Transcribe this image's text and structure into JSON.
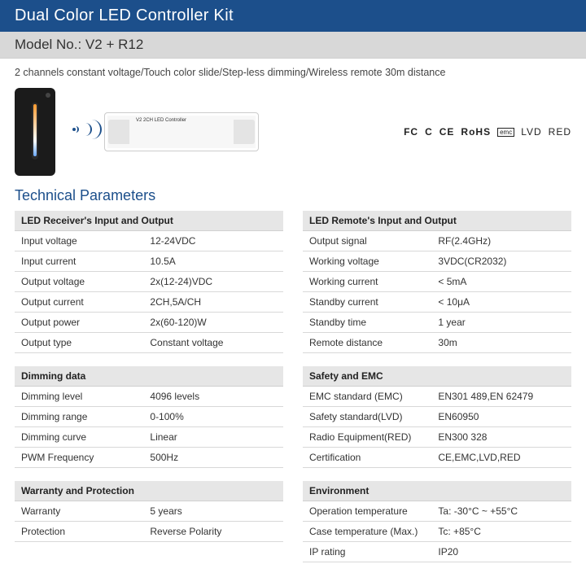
{
  "banner_title": "Dual Color LED Controller Kit",
  "model_label": "Model No.: V2 + R12",
  "subtitle": "2 channels constant voltage/Touch color slide/Step-less dimming/Wireless remote 30m distance",
  "controller_label": "V2\n2CH LED Controller",
  "cert_badges": {
    "fc": "FC",
    "c": "C",
    "ce": "CE",
    "rohs": "RoHS",
    "emc": "emc",
    "lvd": "LVD",
    "red": "RED"
  },
  "technical_parameters_title": "Technical Parameters",
  "colors": {
    "banner_bg": "#1c4f8b",
    "banner_fg": "#ffffff",
    "model_bg": "#d8d8d8",
    "th_bg": "#e6e6e6",
    "accent": "#1c4f8b",
    "row_border": "#d8d8d8"
  },
  "tables_left": [
    {
      "header": "LED Receiver's Input and Output",
      "rows": [
        [
          "Input voltage",
          "12-24VDC"
        ],
        [
          "Input current",
          "10.5A"
        ],
        [
          "Output voltage",
          "2x(12-24)VDC"
        ],
        [
          "Output current",
          "2CH,5A/CH"
        ],
        [
          "Output power",
          "2x(60-120)W"
        ],
        [
          "Output type",
          "Constant voltage"
        ]
      ]
    },
    {
      "header": "Dimming data",
      "rows": [
        [
          "Dimming level",
          "4096 levels"
        ],
        [
          "Dimming range",
          "0-100%"
        ],
        [
          "Dimming curve",
          "Linear"
        ],
        [
          "PWM Frequency",
          "500Hz"
        ]
      ]
    },
    {
      "header": "Warranty and Protection",
      "rows": [
        [
          "Warranty",
          "5 years"
        ],
        [
          "Protection",
          "Reverse Polarity"
        ]
      ]
    }
  ],
  "tables_right": [
    {
      "header": "LED Remote's Input and Output",
      "rows": [
        [
          "Output signal",
          "RF(2.4GHz)"
        ],
        [
          "Working voltage",
          "3VDC(CR2032)"
        ],
        [
          "Working current",
          "< 5mA"
        ],
        [
          "Standby current",
          "< 10μA"
        ],
        [
          "Standby time",
          "1 year"
        ],
        [
          "Remote distance",
          "30m"
        ]
      ]
    },
    {
      "header": "Safety and EMC",
      "rows": [
        [
          "EMC standard (EMC)",
          "EN301 489,EN 62479"
        ],
        [
          "Safety standard(LVD)",
          "EN60950"
        ],
        [
          "Radio Equipment(RED)",
          "EN300 328"
        ],
        [
          "Certification",
          "CE,EMC,LVD,RED"
        ]
      ]
    },
    {
      "header": "Environment",
      "rows": [
        [
          "Operation temperature",
          "Ta: -30°C ~ +55°C"
        ],
        [
          "Case temperature (Max.)",
          "Tc: +85°C"
        ],
        [
          "IP rating",
          "IP20"
        ]
      ]
    }
  ]
}
